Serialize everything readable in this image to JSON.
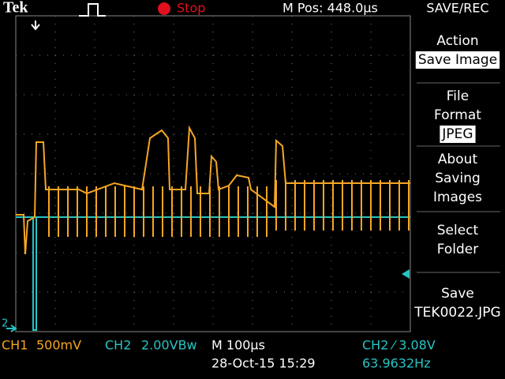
{
  "header": {
    "brand": "Tek",
    "status": "Stop",
    "position": "M Pos: 448.0µs",
    "menu_title": "SAVE/REC"
  },
  "menu": [
    {
      "lines": [
        "Action"
      ],
      "highlight": "Save Image"
    },
    {
      "lines": [
        "File",
        "Format"
      ],
      "highlight": "JPEG"
    },
    {
      "lines": [
        "About",
        "Saving",
        "Images"
      ]
    },
    {
      "lines": [
        "Select",
        "Folder"
      ]
    },
    {
      "lines": [
        "Save",
        "TEK0022.JPG"
      ]
    }
  ],
  "footer": {
    "ch1": "CH1",
    "ch1_scale": "500mV",
    "ch2": "CH2",
    "ch2_scale": "2.00VBw",
    "timebase": "M 100µs",
    "date": "28-Oct-15 15:29",
    "trigger": "CH2 ⁄ 3.08V",
    "frequency": "63.9632Hz"
  },
  "markers": {
    "ch2": "2"
  }
}
